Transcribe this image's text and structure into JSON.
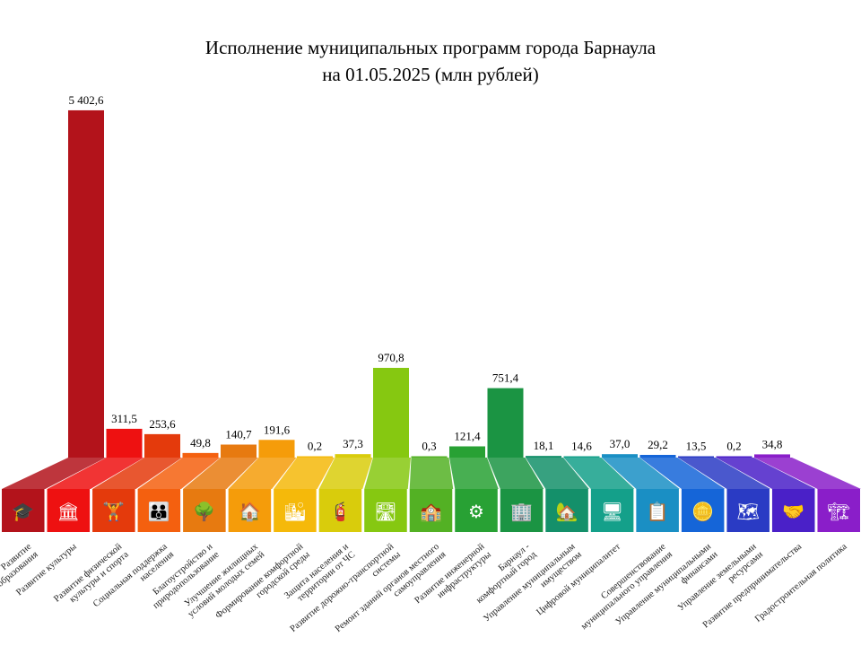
{
  "chart_data": {
    "type": "bar",
    "title": "Исполнение муниципальных программ города Барнаула",
    "subtitle": "на 01.05.2025 (млн рублей)",
    "xlabel": "",
    "ylabel": "",
    "categories": [
      [
        "Развитие",
        "образования"
      ],
      [
        "Развитие культуры"
      ],
      [
        "Развитие физической",
        "культуры и спорта"
      ],
      [
        "Социальная поддержка",
        "населения"
      ],
      [
        "Благоустройство и",
        "природопользование"
      ],
      [
        "Улучшение жилищных",
        "условий молодых семей"
      ],
      [
        "Формирование комфортной",
        "городской среды"
      ],
      [
        "Защита населения и",
        "территории от ЧС"
      ],
      [
        "Развитие дорожно-транспортной",
        "системы"
      ],
      [
        "Ремонт зданий органов местного",
        "самоуправления"
      ],
      [
        "Развитие инженерной",
        "инфраструктуры"
      ],
      [
        "Барнаул -",
        "комфортный город"
      ],
      [
        "Управление муниципальным",
        "имуществом"
      ],
      [
        "Цифровой муниципалитет"
      ],
      [
        "Совершенствование",
        "муниципального управления"
      ],
      [
        "Управление муниципальными",
        "финансами"
      ],
      [
        "Управление земельными",
        "ресурсами"
      ],
      [
        "Развитие предпринимательства"
      ],
      [
        "Градостроительная политика"
      ]
    ],
    "values": [
      5402.6,
      311.5,
      253.6,
      49.8,
      140.7,
      191.6,
      0.2,
      37.3,
      970.8,
      0.3,
      121.4,
      751.4,
      18.1,
      14.6,
      37.0,
      29.2,
      13.5,
      0.2,
      34.8
    ],
    "value_labels": [
      "5 402,6",
      "311,5",
      "253,6",
      "49,8",
      "140,7",
      "191,6",
      "0,2",
      "37,3",
      "970,8",
      "0,3",
      "121,4",
      "751,4",
      "18,1",
      "14,6",
      "37,0",
      "29,2",
      "13,5",
      "0,2",
      "34,8"
    ],
    "colors": [
      "#b3131b",
      "#ee1111",
      "#e43a0c",
      "#f4600f",
      "#e77a10",
      "#f59c0a",
      "#f5b90a",
      "#d9cc0c",
      "#86c811",
      "#53b124",
      "#28a134",
      "#1b9443",
      "#14906a",
      "#14a08a",
      "#1a8fc4",
      "#1565d8",
      "#2a3bc4",
      "#4a20c8",
      "#8a1ec9"
    ],
    "icons": [
      "graduation-cap-icon",
      "column-icon",
      "weightlifter-icon",
      "family-icon",
      "tree-bench-icon",
      "house-family-icon",
      "city-icon",
      "fire-extinguisher-icon",
      "road-icon",
      "building-icon",
      "engineering-icon",
      "city-comfort-icon",
      "house-person-icon",
      "computer-icon",
      "document-check-icon",
      "coins-icon",
      "land-plot-icon",
      "handshake-icon",
      "crane-icon"
    ],
    "icon_glyphs": [
      "🎓",
      "🏛",
      "🏋",
      "👪",
      "🌳",
      "🏠",
      "🏙",
      "🧯",
      "🛣",
      "🏫",
      "⚙",
      "🏢",
      "🏡",
      "🖥",
      "📋",
      "🪙",
      "🗺",
      "🤝",
      "🏗"
    ],
    "axis_break": true,
    "grid": false
  }
}
